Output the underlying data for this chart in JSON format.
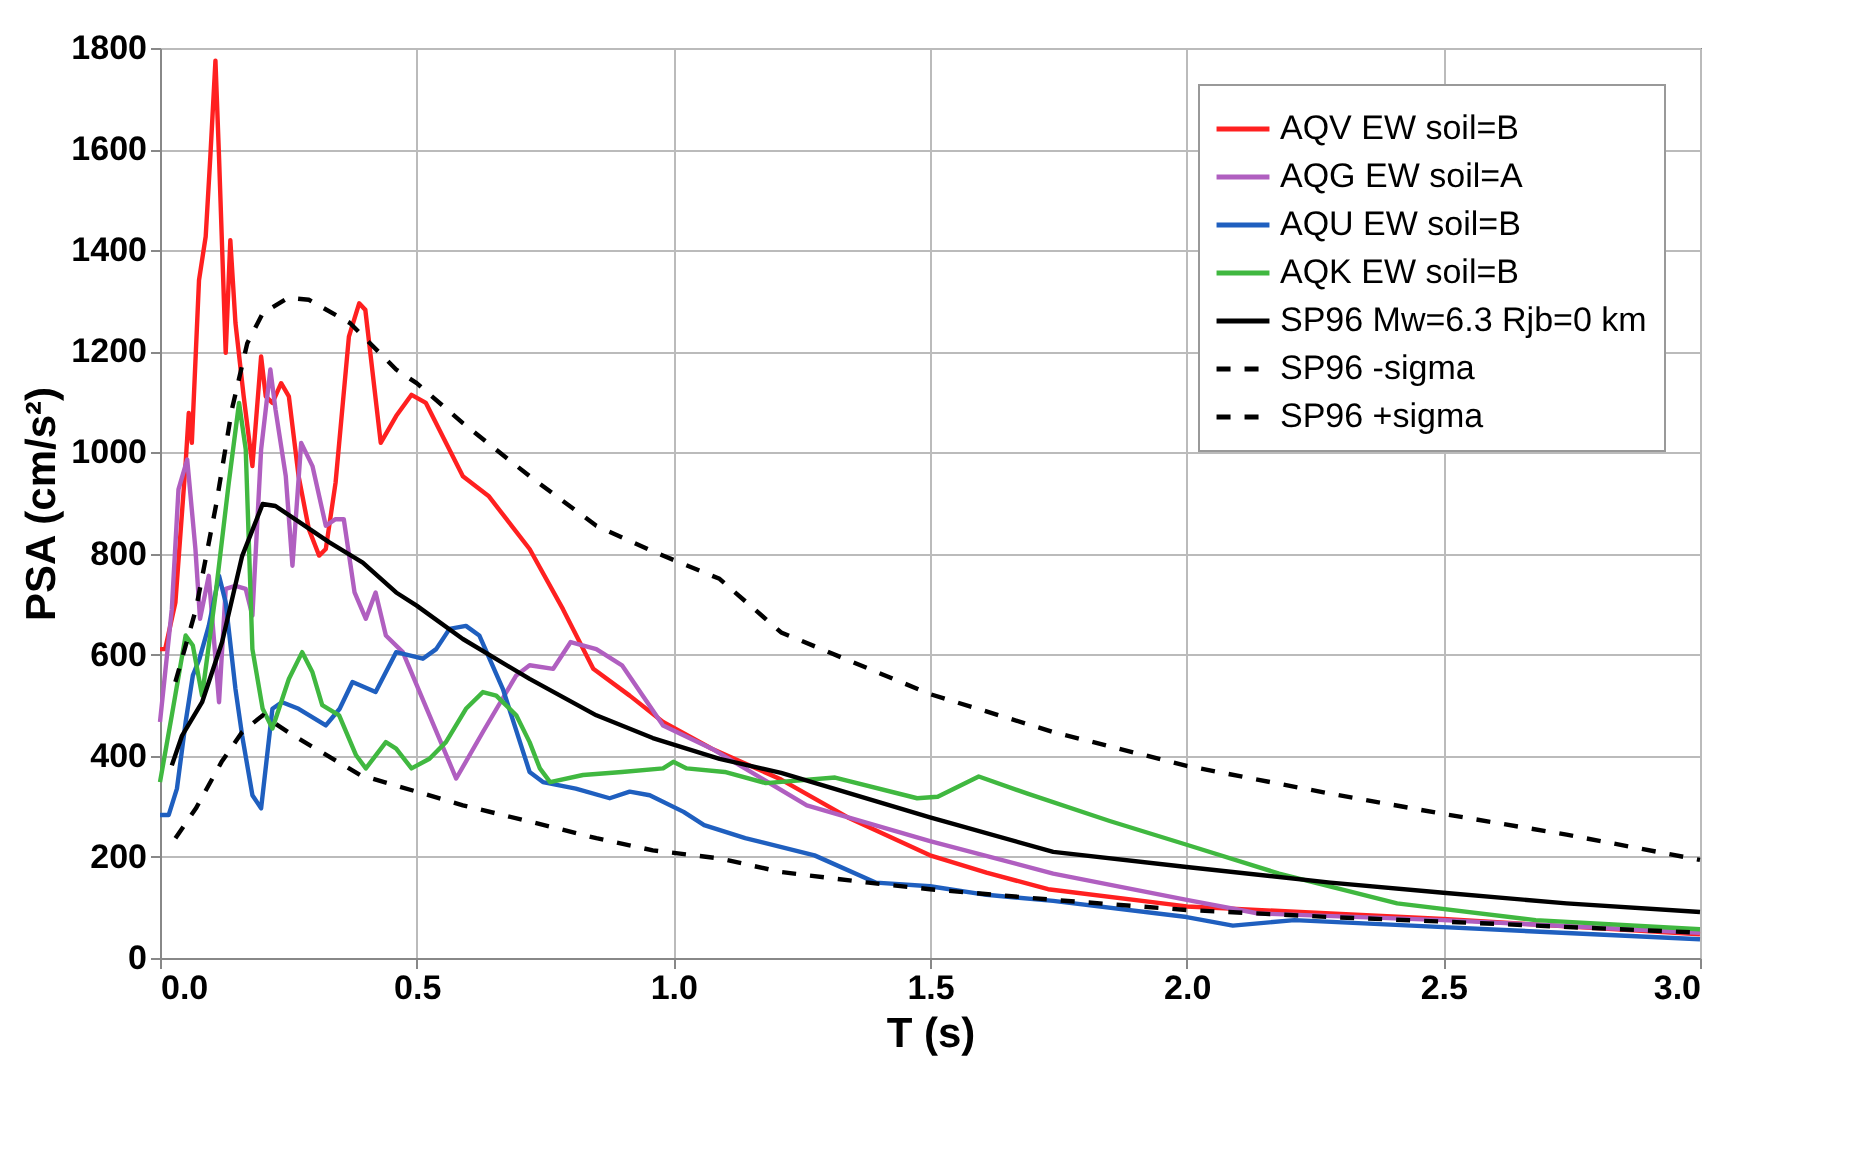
{
  "chart_data": {
    "type": "line",
    "xlabel": "T (s)",
    "ylabel": "PSA (cm/s²)",
    "xlim": [
      0,
      3
    ],
    "xticks": [
      {
        "value": 0,
        "label": "0.0"
      },
      {
        "value": 0.5,
        "label": "0.5"
      },
      {
        "value": 1,
        "label": "1.0"
      },
      {
        "value": 1.5,
        "label": "1.5"
      },
      {
        "value": 2,
        "label": "2.0"
      },
      {
        "value": 2.5,
        "label": "2.5"
      },
      {
        "value": 3,
        "label": "3.0"
      }
    ],
    "ylim": [
      0,
      1800
    ],
    "yticks": [
      0,
      200,
      400,
      600,
      800,
      1000,
      1200,
      1400,
      1600,
      1800
    ],
    "grid": true,
    "legend": "top right",
    "series": [
      {
        "name": "AQV EW soil=B",
        "color": "#ff2020",
        "line_style": "solid",
        "x": [
          0,
          0.01,
          0.03,
          0.05,
          0.056,
          0.062,
          0.076,
          0.089,
          0.098,
          0.108,
          0.115,
          0.128,
          0.137,
          0.147,
          0.163,
          0.18,
          0.197,
          0.206,
          0.219,
          0.236,
          0.251,
          0.27,
          0.29,
          0.31,
          0.323,
          0.342,
          0.368,
          0.388,
          0.4,
          0.43,
          0.46,
          0.49,
          0.518,
          0.557,
          0.59,
          0.64,
          0.72,
          0.785,
          0.844,
          0.915,
          0.98,
          1.075,
          1.21,
          1.34,
          1.5,
          1.61,
          1.73,
          2.0,
          2.28,
          2.5,
          3.0
        ],
        "values": [
          611,
          611,
          703,
          980,
          1078,
          1019,
          1341,
          1427,
          1584,
          1775,
          1584,
          1197,
          1420,
          1256,
          1111,
          973,
          1190,
          1111,
          1098,
          1137,
          1111,
          953,
          848,
          796,
          809,
          940,
          1229,
          1295,
          1282,
          1019,
          1072,
          1114,
          1098,
          1019,
          953,
          914,
          809,
          690,
          572,
          519,
          467,
          414,
          353,
          278,
          203,
          169,
          136,
          102,
          88,
          77,
          47
        ]
      },
      {
        "name": "AQG EW soil=A",
        "color": "#b05fc0",
        "line_style": "solid",
        "x": [
          0,
          0.023,
          0.036,
          0.053,
          0.069,
          0.078,
          0.095,
          0.115,
          0.128,
          0.147,
          0.167,
          0.18,
          0.197,
          0.215,
          0.225,
          0.245,
          0.258,
          0.275,
          0.297,
          0.323,
          0.342,
          0.358,
          0.379,
          0.401,
          0.42,
          0.44,
          0.473,
          0.525,
          0.577,
          0.629,
          0.694,
          0.72,
          0.766,
          0.8,
          0.85,
          0.9,
          0.98,
          1.075,
          1.26,
          1.5,
          1.74,
          2.0,
          2.14,
          2.5,
          3.0
        ],
        "values": [
          467,
          690,
          927,
          986,
          809,
          671,
          756,
          506,
          730,
          736,
          730,
          677,
          1006,
          1164,
          1085,
          953,
          776,
          1019,
          973,
          855,
          868,
          868,
          723,
          671,
          723,
          638,
          605,
          480,
          355,
          447,
          559,
          579,
          572,
          625,
          611,
          579,
          460,
          414,
          302,
          231,
          167,
          115,
          88,
          75,
          50
        ]
      },
      {
        "name": "AQU EW soil=B",
        "color": "#1f5fbf",
        "line_style": "solid",
        "x": [
          0,
          0.017,
          0.033,
          0.05,
          0.064,
          0.077,
          0.095,
          0.115,
          0.128,
          0.147,
          0.16,
          0.18,
          0.197,
          0.219,
          0.238,
          0.27,
          0.323,
          0.35,
          0.375,
          0.42,
          0.46,
          0.512,
          0.538,
          0.564,
          0.596,
          0.622,
          0.668,
          0.72,
          0.746,
          0.81,
          0.876,
          0.915,
          0.954,
          1.02,
          1.06,
          1.14,
          1.275,
          1.395,
          1.5,
          1.61,
          1.74,
          2.0,
          2.09,
          2.21,
          2.5,
          3.0
        ],
        "values": [
          283,
          283,
          335,
          467,
          559,
          592,
          657,
          756,
          703,
          532,
          440,
          322,
          296,
          493,
          506,
          493,
          460,
          493,
          546,
          526,
          605,
          592,
          611,
          651,
          657,
          638,
          532,
          368,
          348,
          335,
          316,
          329,
          322,
          289,
          263,
          237,
          203,
          149,
          142,
          125,
          113,
          81,
          64,
          75,
          61,
          37
        ]
      },
      {
        "name": "AQK EW soil=B",
        "color": "#40b840",
        "line_style": "solid",
        "x": [
          0,
          0.023,
          0.05,
          0.064,
          0.082,
          0.108,
          0.134,
          0.154,
          0.167,
          0.18,
          0.2,
          0.219,
          0.251,
          0.277,
          0.297,
          0.316,
          0.349,
          0.382,
          0.401,
          0.44,
          0.46,
          0.49,
          0.525,
          0.557,
          0.596,
          0.629,
          0.655,
          0.694,
          0.72,
          0.74,
          0.76,
          0.824,
          0.9,
          0.98,
          1.0,
          1.026,
          1.1,
          1.18,
          1.315,
          1.475,
          1.515,
          1.595,
          1.69,
          1.85,
          2.0,
          2.18,
          2.41,
          2.68,
          3.0
        ],
        "values": [
          348,
          480,
          638,
          618,
          519,
          717,
          940,
          1098,
          1006,
          611,
          493,
          454,
          552,
          605,
          565,
          500,
          480,
          401,
          375,
          427,
          414,
          375,
          394,
          427,
          493,
          526,
          519,
          480,
          427,
          375,
          348,
          362,
          368,
          375,
          388,
          375,
          368,
          346,
          357,
          316,
          319,
          359,
          325,
          271,
          224,
          167,
          108,
          75,
          57
        ]
      },
      {
        "name": "SP96 Mw=6.3 Rjb=0 km",
        "color": "#000000",
        "line_style": "solid",
        "x": [
          0.023,
          0.043,
          0.082,
          0.121,
          0.16,
          0.2,
          0.225,
          0.33,
          0.395,
          0.46,
          0.5,
          0.59,
          0.72,
          0.85,
          0.96,
          1.09,
          1.21,
          1.5,
          1.74,
          2.0,
          2.28,
          2.5,
          2.74,
          3.0
        ],
        "values": [
          381,
          440,
          506,
          625,
          795,
          898,
          894,
          822,
          782,
          723,
          697,
          631,
          552,
          480,
          435,
          394,
          366,
          278,
          210,
          180,
          149,
          129,
          108,
          91
        ]
      },
      {
        "name": "SP96 -sigma",
        "color": "#000000",
        "line_style": "dashed",
        "x": [
          0.03,
          0.07,
          0.12,
          0.16,
          0.2,
          0.26,
          0.39,
          0.5,
          0.59,
          0.72,
          0.85,
          0.96,
          1.09,
          1.21,
          1.38,
          1.5,
          1.74,
          2.0,
          2.28,
          2.5,
          3.0
        ],
        "values": [
          237,
          296,
          388,
          447,
          480,
          440,
          362,
          329,
          302,
          270,
          237,
          213,
          197,
          170,
          149,
          136,
          115,
          95,
          81,
          72,
          50
        ]
      },
      {
        "name": "SP96 +sigma",
        "color": "#000000",
        "line_style": "dashed",
        "x": [
          0.03,
          0.07,
          0.11,
          0.14,
          0.17,
          0.2,
          0.25,
          0.29,
          0.37,
          0.46,
          0.5,
          0.59,
          0.72,
          0.85,
          0.97,
          1.09,
          1.21,
          1.5,
          1.74,
          2.0,
          2.28,
          2.5,
          2.74,
          3.0
        ],
        "values": [
          546,
          690,
          900,
          1085,
          1216,
          1275,
          1306,
          1302,
          1256,
          1164,
          1137,
          1058,
          953,
          855,
          800,
          750,
          644,
          522,
          447,
          380,
          325,
          285,
          244,
          194
        ]
      }
    ]
  }
}
